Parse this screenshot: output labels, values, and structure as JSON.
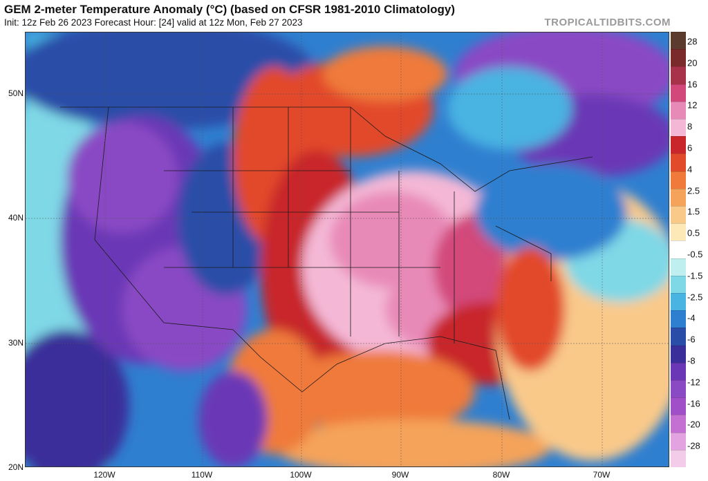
{
  "header": {
    "title": "GEM 2-meter Temperature Anomaly (°C) (based on CFSR 1981-2010 Climatology)",
    "subtitle": "Init: 12z Feb 26 2023   Forecast Hour: [24]   valid at 12z Mon, Feb 27 2023",
    "brand": "TROPICALTIDBITS.COM"
  },
  "map": {
    "lat_labels": [
      "50N",
      "40N",
      "30N",
      "20N"
    ],
    "lon_labels": [
      "120W",
      "110W",
      "100W",
      "90W",
      "80W",
      "70W"
    ]
  },
  "colorbar": {
    "labels": [
      "28",
      "20",
      "16",
      "12",
      "8",
      "6",
      "4",
      "2.5",
      "1.5",
      "0.5",
      "-0.5",
      "-1.5",
      "-2.5",
      "-4",
      "-6",
      "-8",
      "-12",
      "-16",
      "-20",
      "-28"
    ],
    "colors": [
      "#5a3b2e",
      "#7a2a2a",
      "#a8324a",
      "#d2487a",
      "#e88ab8",
      "#f4b8d6",
      "#c8262b",
      "#e24a2c",
      "#ef7a3a",
      "#f5a35a",
      "#f9c98a",
      "#fde9b8",
      "#ffffff",
      "#bfefef",
      "#7fd8e6",
      "#49b3e2",
      "#2f7fd0",
      "#2a4ea8",
      "#3a2f9a",
      "#6a38b6",
      "#8a4ac4",
      "#a04fc9",
      "#c46fd2",
      "#e2a3e0",
      "#f2cce8"
    ],
    "accent_warm": "#c8262b",
    "accent_cold": "#6a38b6"
  }
}
